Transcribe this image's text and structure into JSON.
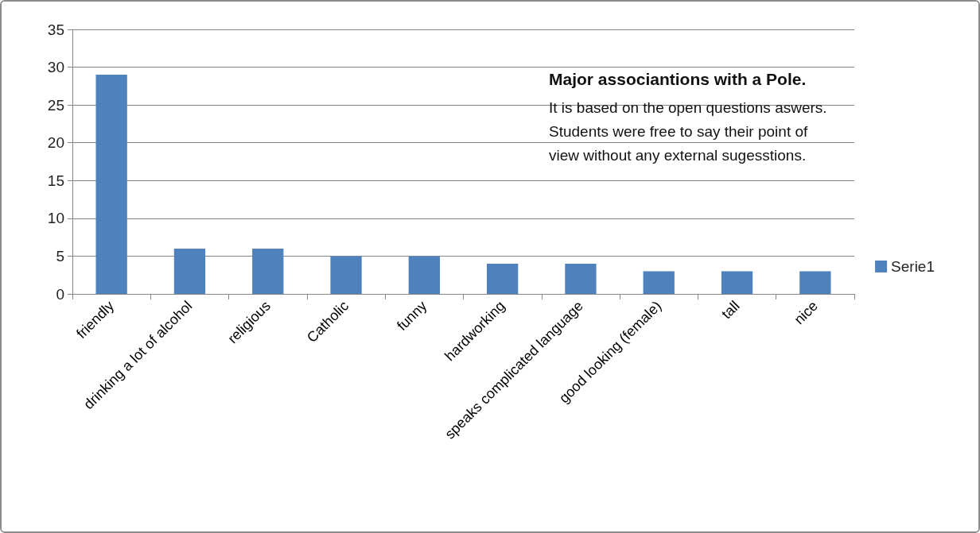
{
  "chart_data": {
    "type": "bar",
    "title": "Major associantions with a Pole.",
    "annotations": [
      "It is based on the open questions aswers. Students were free to say their point of view without any external sugesstions."
    ],
    "categories": [
      "friendly",
      "drinking a lot of alcohol",
      "religious",
      "Catholic",
      "funny",
      "hardworking",
      "speaks complicated language",
      "good looking (female)",
      "tall",
      "nice"
    ],
    "series": [
      {
        "name": "Serie1",
        "color": "#4f81bd",
        "values": [
          29,
          6,
          6,
          5,
          5,
          4,
          4,
          3,
          3,
          3
        ]
      }
    ],
    "ylim": [
      0,
      35
    ],
    "yticks": [
      0,
      5,
      10,
      15,
      20,
      25,
      30,
      35
    ],
    "grid": "y",
    "legend": "right"
  }
}
